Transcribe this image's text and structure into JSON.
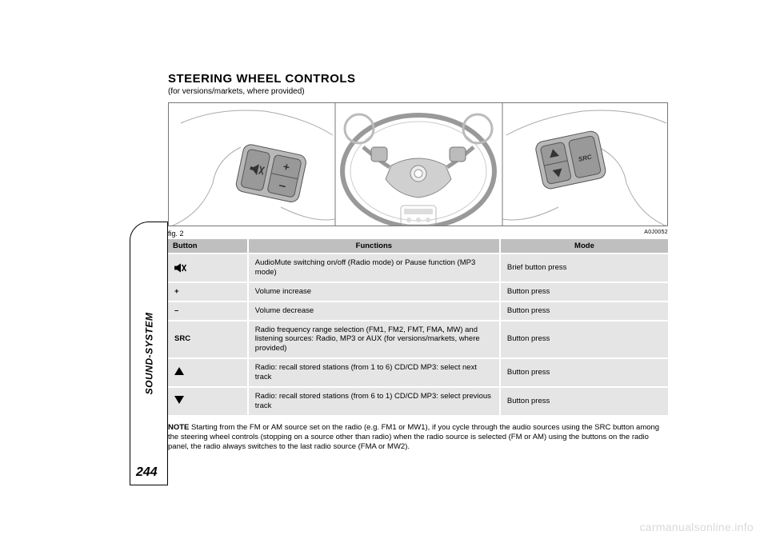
{
  "section_tab": "SOUND-SYSTEM",
  "page_number": "244",
  "title": "STEERING WHEEL CONTROLS",
  "subtitle": "(for versions/markets, where provided)",
  "figure": {
    "caption_left": "fig. 2",
    "caption_right": "A0J0052",
    "left_pad": {
      "plus": "+",
      "minus": "–"
    },
    "right_pad": {
      "src": "SRC"
    }
  },
  "table": {
    "headers": [
      "Button",
      "Functions",
      "Mode"
    ],
    "rows": [
      {
        "button_icon": "mute",
        "button_text": "",
        "func": "AudioMute switching on/off (Radio mode) or Pause function (MP3 mode)",
        "mode": "Brief button press"
      },
      {
        "button_icon": null,
        "button_text": "+",
        "func": "Volume increase",
        "mode": "Button press"
      },
      {
        "button_icon": null,
        "button_text": "–",
        "func": "Volume decrease",
        "mode": "Button press"
      },
      {
        "button_icon": null,
        "button_text": "SRC",
        "func": "Radio frequency range selection (FM1, FM2, FMT, FMA, MW) and listening sources: Radio, MP3 or AUX (for versions/markets, where provided)",
        "mode": "Button press"
      },
      {
        "button_icon": "up",
        "button_text": "",
        "func": "Radio: recall stored stations (from 1 to 6) CD/CD MP3: select next track",
        "mode": "Button press"
      },
      {
        "button_icon": "down",
        "button_text": "",
        "func": "Radio: recall stored stations (from 6 to 1) CD/CD MP3: select previous track",
        "mode": "Button press"
      }
    ]
  },
  "note_label": "NOTE",
  "note_text": " Starting from the FM or AM source set on the radio (e.g. FM1 or MW1), if you cycle through the audio sources using the SRC button among the steering wheel controls (stopping on a source other than radio) when the radio source is selected (FM or AM) using the buttons on the radio panel, the radio always switches to the last radio source (FMA or MW2).",
  "watermark": "carmanualsonline.info",
  "colors": {
    "header_bg": "#bfbfbf",
    "row_bg": "#e5e5e5",
    "watermark": "#d9d9d9",
    "border": "#777777"
  }
}
